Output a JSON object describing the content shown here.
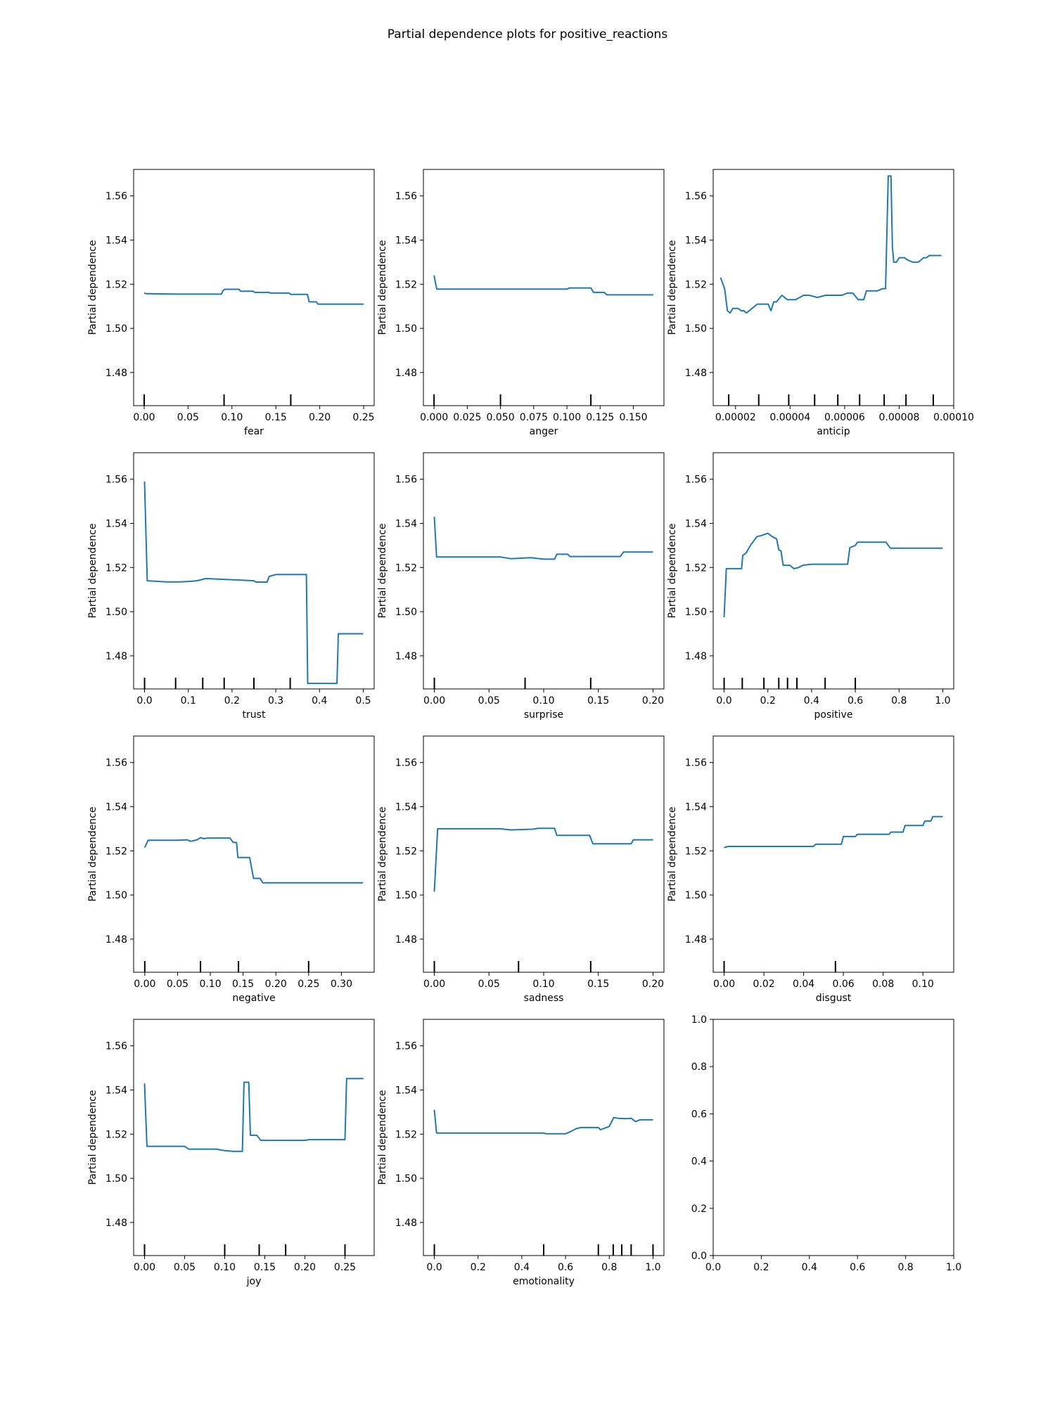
{
  "figure": {
    "title": "Partial dependence plots for positive_reactions"
  },
  "style": {
    "line_color": "#1f77b4",
    "axes_color": "#000000",
    "background": "#ffffff"
  },
  "chart_data": [
    {
      "type": "line",
      "xlabel": "fear",
      "ylabel": "Partial dependence",
      "xlim": [
        -0.012,
        0.262
      ],
      "ylim": [
        1.465,
        1.572
      ],
      "xticks": [
        0.0,
        0.05,
        0.1,
        0.15,
        0.2,
        0.25
      ],
      "xtick_labels": [
        "0.00",
        "0.05",
        "0.10",
        "0.15",
        "0.20",
        "0.25"
      ],
      "yticks": [
        1.48,
        1.5,
        1.52,
        1.54,
        1.56
      ],
      "ytick_labels": [
        "1.48",
        "1.50",
        "1.52",
        "1.54",
        "1.56"
      ],
      "deciles": [
        0.0,
        0.091,
        0.167
      ],
      "x": [
        0.0,
        0.003,
        0.04,
        0.088,
        0.09,
        0.092,
        0.108,
        0.11,
        0.124,
        0.126,
        0.142,
        0.144,
        0.165,
        0.167,
        0.186,
        0.188,
        0.196,
        0.198,
        0.25
      ],
      "y": [
        1.516,
        1.5157,
        1.5155,
        1.5155,
        1.5172,
        1.5177,
        1.5177,
        1.5168,
        1.5168,
        1.5163,
        1.5163,
        1.516,
        1.516,
        1.5154,
        1.5154,
        1.512,
        1.512,
        1.511,
        1.511
      ]
    },
    {
      "type": "line",
      "xlabel": "anger",
      "ylabel": "Partial dependence",
      "xlim": [
        -0.008,
        0.173
      ],
      "ylim": [
        1.465,
        1.572
      ],
      "xticks": [
        0.0,
        0.025,
        0.05,
        0.075,
        0.1,
        0.125,
        0.15
      ],
      "xtick_labels": [
        "0.000",
        "0.025",
        "0.050",
        "0.075",
        "0.100",
        "0.125",
        "0.150"
      ],
      "yticks": [
        1.48,
        1.5,
        1.52,
        1.54,
        1.56
      ],
      "ytick_labels": [
        "1.48",
        "1.50",
        "1.52",
        "1.54",
        "1.56"
      ],
      "deciles": [
        0.0,
        0.05,
        0.118
      ],
      "x": [
        0.0,
        0.002,
        0.05,
        0.1,
        0.102,
        0.118,
        0.12,
        0.128,
        0.13,
        0.165
      ],
      "y": [
        1.524,
        1.5178,
        1.5178,
        1.5178,
        1.5183,
        1.5183,
        1.5163,
        1.5163,
        1.5152,
        1.5152
      ]
    },
    {
      "type": "line",
      "xlabel": "anticip",
      "ylabel": "Partial dependence",
      "xlim": [
        1.18e-05,
        0.0001
      ],
      "ylim": [
        1.465,
        1.572
      ],
      "xticks": [
        2e-05,
        4e-05,
        6e-05,
        8e-05,
        0.0001
      ],
      "xtick_labels": [
        "0.00002",
        "0.00004",
        "0.00006",
        "0.00008",
        "0.00010"
      ],
      "yticks": [
        1.48,
        1.5,
        1.52,
        1.54,
        1.56
      ],
      "ytick_labels": [
        "1.48",
        "1.50",
        "1.52",
        "1.54",
        "1.56"
      ],
      "deciles": [
        1.75e-05,
        2.85e-05,
        3.95e-05,
        4.9e-05,
        5.75e-05,
        6.55e-05,
        7.45e-05,
        8.25e-05,
        9.25e-05
      ],
      "x": [
        1.45e-05,
        1.6e-05,
        1.7e-05,
        1.8e-05,
        1.9e-05,
        2.1e-05,
        2.2e-05,
        2.3e-05,
        2.4e-05,
        2.5e-05,
        2.6e-05,
        2.7e-05,
        2.8e-05,
        3e-05,
        3.1e-05,
        3.2e-05,
        3.3e-05,
        3.4e-05,
        3.5e-05,
        3.7e-05,
        3.9e-05,
        4e-05,
        4.2e-05,
        4.5e-05,
        4.7e-05,
        5e-05,
        5.3e-05,
        5.6e-05,
        5.9e-05,
        6.1e-05,
        6.3e-05,
        6.5e-05,
        6.7e-05,
        6.8e-05,
        7e-05,
        7.1e-05,
        7.2e-05,
        7.4e-05,
        7.5e-05,
        7.6e-05,
        7.7e-05,
        7.75e-05,
        7.8e-05,
        7.85e-05,
        7.9e-05,
        8e-05,
        8.2e-05,
        8.3e-05,
        8.5e-05,
        8.7e-05,
        8.9e-05,
        9e-05,
        9.1e-05,
        9.2e-05,
        9.3e-05,
        9.5e-05,
        9.55e-05
      ],
      "y": [
        1.523,
        1.518,
        1.508,
        1.507,
        1.509,
        1.509,
        1.508,
        1.508,
        1.507,
        1.508,
        1.509,
        1.51,
        1.511,
        1.511,
        1.511,
        1.511,
        1.508,
        1.512,
        1.512,
        1.515,
        1.513,
        1.513,
        1.513,
        1.515,
        1.515,
        1.514,
        1.515,
        1.515,
        1.515,
        1.516,
        1.516,
        1.513,
        1.513,
        1.517,
        1.517,
        1.517,
        1.517,
        1.518,
        1.518,
        1.569,
        1.569,
        1.537,
        1.53,
        1.53,
        1.53,
        1.532,
        1.532,
        1.531,
        1.53,
        1.53,
        1.532,
        1.532,
        1.533,
        1.533,
        1.533,
        1.533,
        1.533
      ]
    },
    {
      "type": "line",
      "xlabel": "trust",
      "ylabel": "Partial dependence",
      "xlim": [
        -0.025,
        0.525
      ],
      "ylim": [
        1.465,
        1.572
      ],
      "xticks": [
        0.0,
        0.1,
        0.2,
        0.3,
        0.4,
        0.5
      ],
      "xtick_labels": [
        "0.0",
        "0.1",
        "0.2",
        "0.3",
        "0.4",
        "0.5"
      ],
      "yticks": [
        1.48,
        1.5,
        1.52,
        1.54,
        1.56
      ],
      "ytick_labels": [
        "1.48",
        "1.50",
        "1.52",
        "1.54",
        "1.56"
      ],
      "deciles": [
        0.0,
        0.071,
        0.133,
        0.182,
        0.25,
        0.333
      ],
      "x": [
        0.0,
        0.006,
        0.05,
        0.08,
        0.1,
        0.12,
        0.14,
        0.2,
        0.25,
        0.255,
        0.28,
        0.285,
        0.3,
        0.37,
        0.373,
        0.44,
        0.443,
        0.5
      ],
      "y": [
        1.559,
        1.514,
        1.5135,
        1.5135,
        1.5137,
        1.514,
        1.515,
        1.5145,
        1.514,
        1.5134,
        1.5134,
        1.516,
        1.5168,
        1.5168,
        1.4675,
        1.4675,
        1.49,
        1.49
      ]
    },
    {
      "type": "line",
      "xlabel": "surprise",
      "ylabel": "Partial dependence",
      "xlim": [
        -0.01,
        0.21
      ],
      "ylim": [
        1.465,
        1.572
      ],
      "xticks": [
        0.0,
        0.05,
        0.1,
        0.15,
        0.2
      ],
      "xtick_labels": [
        "0.00",
        "0.05",
        "0.10",
        "0.15",
        "0.20"
      ],
      "yticks": [
        1.48,
        1.5,
        1.52,
        1.54,
        1.56
      ],
      "ytick_labels": [
        "1.48",
        "1.50",
        "1.52",
        "1.54",
        "1.56"
      ],
      "deciles": [
        0.0,
        0.083,
        0.143
      ],
      "x": [
        0.0,
        0.002,
        0.06,
        0.07,
        0.088,
        0.1,
        0.11,
        0.112,
        0.122,
        0.124,
        0.17,
        0.173,
        0.2
      ],
      "y": [
        1.543,
        1.5248,
        1.5248,
        1.524,
        1.5245,
        1.5238,
        1.5238,
        1.526,
        1.526,
        1.525,
        1.525,
        1.527,
        1.527
      ]
    },
    {
      "type": "line",
      "xlabel": "positive",
      "ylabel": "Partial dependence",
      "xlim": [
        -0.05,
        1.05
      ],
      "ylim": [
        1.465,
        1.572
      ],
      "xticks": [
        0.0,
        0.2,
        0.4,
        0.6,
        0.8,
        1.0
      ],
      "xtick_labels": [
        "0.0",
        "0.2",
        "0.4",
        "0.6",
        "0.8",
        "1.0"
      ],
      "yticks": [
        1.48,
        1.5,
        1.52,
        1.54,
        1.56
      ],
      "ytick_labels": [
        "1.48",
        "1.50",
        "1.52",
        "1.54",
        "1.56"
      ],
      "deciles": [
        0.0,
        0.083,
        0.182,
        0.25,
        0.29,
        0.333,
        0.462,
        0.6
      ],
      "x": [
        0.0,
        0.01,
        0.08,
        0.085,
        0.1,
        0.12,
        0.15,
        0.17,
        0.2,
        0.22,
        0.24,
        0.25,
        0.26,
        0.27,
        0.3,
        0.32,
        0.34,
        0.36,
        0.4,
        0.46,
        0.565,
        0.575,
        0.6,
        0.61,
        0.74,
        0.76,
        1.0
      ],
      "y": [
        1.4975,
        1.5195,
        1.5195,
        1.5255,
        1.5265,
        1.53,
        1.534,
        1.5345,
        1.5355,
        1.534,
        1.533,
        1.528,
        1.5275,
        1.521,
        1.521,
        1.5195,
        1.52,
        1.521,
        1.5215,
        1.5215,
        1.5215,
        1.529,
        1.53,
        1.5315,
        1.5315,
        1.5288,
        1.5288
      ]
    },
    {
      "type": "line",
      "xlabel": "negative",
      "ylabel": "Partial dependence",
      "xlim": [
        -0.017,
        0.35
      ],
      "ylim": [
        1.465,
        1.572
      ],
      "xticks": [
        0.0,
        0.05,
        0.1,
        0.15,
        0.2,
        0.25,
        0.3
      ],
      "xtick_labels": [
        "0.00",
        "0.05",
        "0.10",
        "0.15",
        "0.20",
        "0.25",
        "0.30"
      ],
      "yticks": [
        1.48,
        1.5,
        1.52,
        1.54,
        1.56
      ],
      "ytick_labels": [
        "1.48",
        "1.50",
        "1.52",
        "1.54",
        "1.56"
      ],
      "deciles": [
        0.0,
        0.085,
        0.143,
        0.25
      ],
      "x": [
        0.0,
        0.005,
        0.05,
        0.065,
        0.07,
        0.08,
        0.085,
        0.09,
        0.095,
        0.13,
        0.135,
        0.14,
        0.142,
        0.16,
        0.166,
        0.176,
        0.18,
        0.333
      ],
      "y": [
        1.5215,
        1.5248,
        1.5248,
        1.525,
        1.5243,
        1.525,
        1.526,
        1.5255,
        1.5258,
        1.5258,
        1.5238,
        1.5238,
        1.517,
        1.517,
        1.5075,
        1.5075,
        1.5055,
        1.5055
      ]
    },
    {
      "type": "line",
      "xlabel": "sadness",
      "ylabel": "Partial dependence",
      "xlim": [
        -0.01,
        0.21
      ],
      "ylim": [
        1.465,
        1.572
      ],
      "xticks": [
        0.0,
        0.05,
        0.1,
        0.15,
        0.2
      ],
      "xtick_labels": [
        "0.00",
        "0.05",
        "0.10",
        "0.15",
        "0.20"
      ],
      "yticks": [
        1.48,
        1.5,
        1.52,
        1.54,
        1.56
      ],
      "ytick_labels": [
        "1.48",
        "1.50",
        "1.52",
        "1.54",
        "1.56"
      ],
      "deciles": [
        0.0,
        0.077,
        0.143
      ],
      "x": [
        0.0,
        0.003,
        0.06,
        0.07,
        0.09,
        0.095,
        0.11,
        0.112,
        0.142,
        0.145,
        0.18,
        0.182,
        0.2
      ],
      "y": [
        1.5015,
        1.53,
        1.53,
        1.5295,
        1.5298,
        1.5302,
        1.5302,
        1.527,
        1.527,
        1.5232,
        1.5232,
        1.525,
        1.525
      ]
    },
    {
      "type": "line",
      "xlabel": "disgust",
      "ylabel": "Partial dependence",
      "xlim": [
        -0.0055,
        0.1155
      ],
      "ylim": [
        1.465,
        1.572
      ],
      "xticks": [
        0.0,
        0.02,
        0.04,
        0.06,
        0.08,
        0.1
      ],
      "xtick_labels": [
        "0.00",
        "0.02",
        "0.04",
        "0.06",
        "0.08",
        "0.10"
      ],
      "yticks": [
        1.48,
        1.5,
        1.52,
        1.54,
        1.56
      ],
      "ytick_labels": [
        "1.48",
        "1.50",
        "1.52",
        "1.54",
        "1.56"
      ],
      "deciles": [
        0.0,
        0.056
      ],
      "x": [
        0.0,
        0.002,
        0.045,
        0.046,
        0.059,
        0.06,
        0.066,
        0.067,
        0.083,
        0.084,
        0.09,
        0.091,
        0.1,
        0.101,
        0.104,
        0.105,
        0.11
      ],
      "y": [
        1.5215,
        1.522,
        1.522,
        1.523,
        1.523,
        1.5265,
        1.5265,
        1.5275,
        1.5275,
        1.5285,
        1.5285,
        1.5315,
        1.5315,
        1.5335,
        1.5335,
        1.5355,
        1.5355
      ]
    },
    {
      "type": "line",
      "xlabel": "joy",
      "ylabel": "Partial dependence",
      "xlim": [
        -0.0136,
        0.2864
      ],
      "ylim": [
        1.465,
        1.572
      ],
      "xticks": [
        0.0,
        0.05,
        0.1,
        0.15,
        0.2,
        0.25
      ],
      "xtick_labels": [
        "0.00",
        "0.05",
        "0.10",
        "0.15",
        "0.20",
        "0.25"
      ],
      "yticks": [
        1.48,
        1.5,
        1.52,
        1.54,
        1.56
      ],
      "ytick_labels": [
        "1.48",
        "1.50",
        "1.52",
        "1.54",
        "1.56"
      ],
      "deciles": [
        0.0,
        0.1,
        0.143,
        0.176,
        0.25
      ],
      "x": [
        0.0,
        0.003,
        0.05,
        0.055,
        0.09,
        0.1,
        0.11,
        0.122,
        0.124,
        0.13,
        0.132,
        0.14,
        0.145,
        0.2,
        0.205,
        0.25,
        0.252,
        0.273
      ],
      "y": [
        1.543,
        1.5145,
        1.5145,
        1.5132,
        1.5132,
        1.5125,
        1.5122,
        1.5122,
        1.5435,
        1.5435,
        1.5195,
        1.5195,
        1.5172,
        1.5172,
        1.5175,
        1.5175,
        1.5452,
        1.5452
      ]
    },
    {
      "type": "line",
      "xlabel": "emotionality",
      "ylabel": "Partial dependence",
      "xlim": [
        -0.05,
        1.05
      ],
      "ylim": [
        1.465,
        1.572
      ],
      "xticks": [
        0.0,
        0.2,
        0.4,
        0.6,
        0.8,
        1.0
      ],
      "xtick_labels": [
        "0.0",
        "0.2",
        "0.4",
        "0.6",
        "0.8",
        "1.0"
      ],
      "yticks": [
        1.48,
        1.5,
        1.52,
        1.54,
        1.56
      ],
      "ytick_labels": [
        "1.48",
        "1.50",
        "1.52",
        "1.54",
        "1.56"
      ],
      "deciles": [
        0.0,
        0.5,
        0.75,
        0.818,
        0.857,
        0.9,
        1.0
      ],
      "x": [
        0.0,
        0.01,
        0.5,
        0.51,
        0.6,
        0.62,
        0.65,
        0.67,
        0.75,
        0.76,
        0.8,
        0.82,
        0.84,
        0.88,
        0.9,
        0.92,
        0.94,
        1.0
      ],
      "y": [
        1.531,
        1.5205,
        1.5205,
        1.5202,
        1.5202,
        1.521,
        1.5225,
        1.523,
        1.523,
        1.522,
        1.5235,
        1.5275,
        1.5272,
        1.527,
        1.5272,
        1.5257,
        1.5265,
        1.5265
      ]
    },
    {
      "type": "line",
      "empty": true,
      "xlabel": "",
      "ylabel": "",
      "xlim": [
        0,
        1
      ],
      "ylim": [
        0,
        1
      ],
      "xticks": [
        0.0,
        0.2,
        0.4,
        0.6,
        0.8,
        1.0
      ],
      "xtick_labels": [
        "0.0",
        "0.2",
        "0.4",
        "0.6",
        "0.8",
        "1.0"
      ],
      "yticks": [
        0.0,
        0.2,
        0.4,
        0.6,
        0.8,
        1.0
      ],
      "ytick_labels": [
        "0.0",
        "0.2",
        "0.4",
        "0.6",
        "0.8",
        "1.0"
      ],
      "deciles": [],
      "x": [],
      "y": []
    }
  ]
}
